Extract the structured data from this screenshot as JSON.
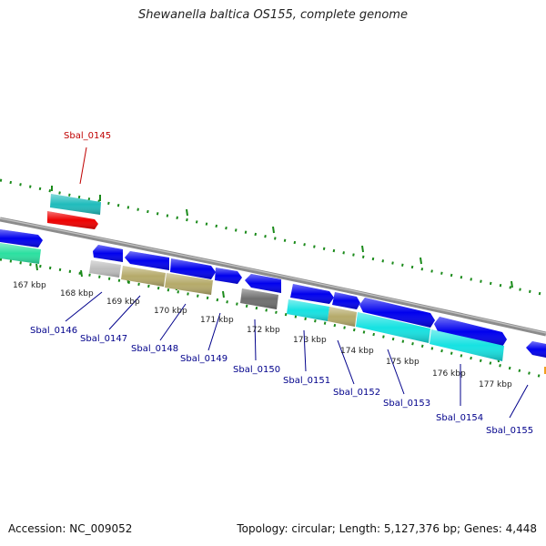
{
  "title": "Shewanella baltica OS155, complete genome",
  "footer": {
    "accession": "Accession: NC_009052",
    "topology": "Topology: circular; Length: 5,127,376 bp; Genes: 4,448"
  },
  "colors": {
    "backbone": "#8c8c8c",
    "ticks": "#1a8a1a",
    "label_blue": "#00008b",
    "label_red": "#c00000",
    "gene_blue": "#0000ee",
    "gene_cyan": "#16e2e2",
    "gene_red": "#ee0000",
    "gene_tan": "#b5aa6a",
    "gene_silver": "#bdbdbd",
    "gene_dark": "#6f6f6f",
    "gene_green": "#2be0a0",
    "gene_teal": "#20bcbc"
  },
  "kbp_labels": [
    "167 kbp",
    "168 kbp",
    "169 kbp",
    "170 kbp",
    "171 kbp",
    "172 kbp",
    "173 kbp",
    "174 kbp",
    "175 kbp",
    "176 kbp",
    "177 kbp"
  ],
  "genes": [
    {
      "name": "Sbal_0145",
      "color": "label_red"
    },
    {
      "name": "Sbal_0146",
      "color": "label_blue"
    },
    {
      "name": "Sbal_0147",
      "color": "label_blue"
    },
    {
      "name": "Sbal_0148",
      "color": "label_blue"
    },
    {
      "name": "Sbal_0149",
      "color": "label_blue"
    },
    {
      "name": "Sbal_0150",
      "color": "label_blue"
    },
    {
      "name": "Sbal_0151",
      "color": "label_blue"
    },
    {
      "name": "Sbal_0152",
      "color": "label_blue"
    },
    {
      "name": "Sbal_0153",
      "color": "label_blue"
    },
    {
      "name": "Sbal_0154",
      "color": "label_blue"
    },
    {
      "name": "Sbal_0155",
      "color": "label_blue"
    }
  ]
}
